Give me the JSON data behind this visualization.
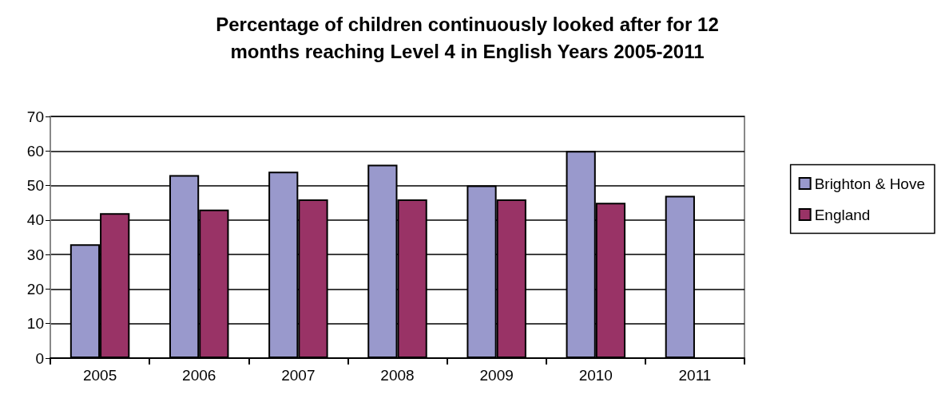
{
  "chart_data": {
    "type": "bar",
    "title": "Percentage of children continuously looked after for 12\nmonths reaching Level 4 in English Years 2005-2011",
    "categories": [
      "2005",
      "2006",
      "2007",
      "2008",
      "2009",
      "2010",
      "2011"
    ],
    "series": [
      {
        "name": "Brighton & Hove",
        "color": "#9999cc",
        "values": [
          33,
          53,
          54,
          56,
          50,
          60,
          47
        ]
      },
      {
        "name": "England",
        "color": "#993366",
        "values": [
          42,
          43,
          46,
          46,
          46,
          45,
          null
        ]
      }
    ],
    "ylim": [
      0,
      70
    ],
    "yticks": [
      0,
      10,
      20,
      30,
      40,
      50,
      60,
      70
    ],
    "grid": "y",
    "legend": "right"
  }
}
